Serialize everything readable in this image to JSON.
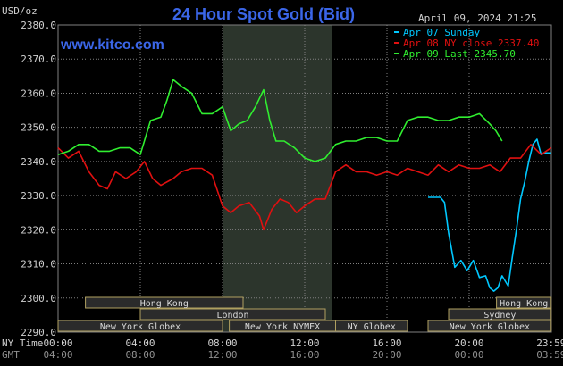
{
  "page": {
    "title": "24 Hour Spot Gold (Bid)",
    "site": "www.kitco.com",
    "unit": "USD/oz",
    "date": "April 09, 2024 21:25"
  },
  "colors": {
    "background": "#000000",
    "grid": "#808080",
    "title": "#3b66e8",
    "site": "#3b66e8",
    "text": "#d0d0d0",
    "sunday": "#00c8ff",
    "apr08": "#e01010",
    "apr09": "#30ee30",
    "shade": "#2c352c",
    "session_fill": "#2b2b2b",
    "session_border": "#b0a060",
    "session_text": "#d8d8d8"
  },
  "axis_labels": {
    "ny_time": "NY Time",
    "gmt": "GMT"
  },
  "chart_data": {
    "type": "line",
    "ylim": [
      2290,
      2380
    ],
    "xlim": [
      0,
      24
    ],
    "yticks": [
      "2290.0",
      "2300.0",
      "2310.0",
      "2320.0",
      "2330.0",
      "2340.0",
      "2350.0",
      "2360.0",
      "2370.0",
      "2380.0"
    ],
    "ny_ticks": [
      "00:00",
      "04:00",
      "08:00",
      "12:00",
      "16:00",
      "20:00",
      "23:59"
    ],
    "gmt_ticks": [
      "04:00",
      "08:00",
      "12:00",
      "16:00",
      "20:00",
      "00:00",
      "03:59"
    ],
    "legend_position": "top-right",
    "shaded_interval": [
      8,
      13.33
    ],
    "series": [
      {
        "name": "Apr 07 Sunday",
        "color": "#00c8ff",
        "x": [
          18.0,
          18.3,
          18.6,
          18.8,
          19.0,
          19.3,
          19.6,
          19.9,
          20.2,
          20.5,
          20.8,
          21.0,
          21.2,
          21.4,
          21.6,
          21.9,
          22.1,
          22.3,
          22.5,
          22.7,
          22.9,
          23.1,
          23.3,
          23.5,
          23.7,
          23.99
        ],
        "y": [
          2329.5,
          2329.5,
          2329.5,
          2328,
          2319,
          2309,
          2311,
          2308,
          2311,
          2306,
          2306.5,
          2303,
          2302,
          2303,
          2306.5,
          2303.5,
          2312,
          2320,
          2329,
          2334,
          2340,
          2345,
          2346.5,
          2342,
          2342.5,
          2342.5
        ]
      },
      {
        "name": "Apr 08 NY close 2337.40",
        "color": "#e01010",
        "x": [
          0,
          0.5,
          1,
          1.5,
          2,
          2.4,
          2.8,
          3.3,
          3.8,
          4.2,
          4.6,
          5,
          5.6,
          6,
          6.5,
          7,
          7.5,
          8,
          8.4,
          8.8,
          9.3,
          9.8,
          10,
          10.4,
          10.8,
          11.2,
          11.6,
          12,
          12.5,
          13,
          13.5,
          14,
          14.5,
          15,
          15.5,
          16,
          16.5,
          17,
          17.5,
          18,
          18.5,
          19,
          19.5,
          20,
          20.5,
          21,
          21.5,
          22,
          22.5,
          23,
          23.5,
          23.99
        ],
        "y": [
          2344,
          2341,
          2343,
          2337,
          2333,
          2332,
          2337,
          2335,
          2337,
          2340,
          2335,
          2333,
          2335,
          2337,
          2338,
          2338,
          2336,
          2327,
          2325,
          2327,
          2328,
          2324,
          2320,
          2326,
          2329,
          2328,
          2325,
          2327,
          2329,
          2329,
          2337,
          2339,
          2337,
          2337,
          2336,
          2337,
          2336,
          2338,
          2337,
          2336,
          2339,
          2337,
          2339,
          2338,
          2338,
          2339,
          2337,
          2341,
          2341,
          2345,
          2342,
          2344
        ]
      },
      {
        "name": "Apr 09 Last 2345.70",
        "color": "#30ee30",
        "x": [
          0,
          0.5,
          1,
          1.5,
          2,
          2.5,
          3,
          3.5,
          4,
          4.5,
          5,
          5.3,
          5.6,
          6,
          6.5,
          7,
          7.5,
          8,
          8.4,
          8.8,
          9.2,
          9.6,
          10,
          10.3,
          10.6,
          11,
          11.5,
          12,
          12.5,
          13,
          13.5,
          14,
          14.5,
          15,
          15.5,
          16,
          16.5,
          17,
          17.5,
          18,
          18.5,
          19,
          19.5,
          20,
          20.5,
          21,
          21.3,
          21.6
        ],
        "y": [
          2342,
          2343,
          2345,
          2345,
          2343,
          2343,
          2344,
          2344,
          2342,
          2352,
          2353,
          2358,
          2364,
          2362,
          2360,
          2354,
          2354,
          2356,
          2349,
          2351,
          2352,
          2356,
          2361,
          2352,
          2346,
          2346,
          2344,
          2341,
          2340,
          2341,
          2345,
          2346,
          2346,
          2347,
          2347,
          2346,
          2346,
          2352,
          2353,
          2353,
          2352,
          2352,
          2353,
          2353,
          2354,
          2351,
          2349,
          2346
        ]
      }
    ],
    "legend": [
      "Apr 07 Sunday",
      "Apr 08 NY close 2337.40",
      "Apr 09 Last 2345.70"
    ],
    "sessions": {
      "row1": [
        {
          "label": "Hong Kong",
          "start": 1.33,
          "end": 9.0
        },
        {
          "label": "Hong Kong",
          "start": 21.33,
          "end": 23.99
        }
      ],
      "row2": [
        {
          "label": "London",
          "start": 4.0,
          "end": 13.0
        },
        {
          "label": "Sydney",
          "start": 19.0,
          "end": 23.99
        }
      ],
      "row3": [
        {
          "label": "New York Globex",
          "start": 0.0,
          "end": 8.0
        },
        {
          "label": "New York NYMEX",
          "start": 8.33,
          "end": 13.5
        },
        {
          "label": "NY Globex",
          "start": 13.5,
          "end": 17.0
        },
        {
          "label": "New York Globex",
          "start": 18.0,
          "end": 23.99
        }
      ]
    }
  }
}
